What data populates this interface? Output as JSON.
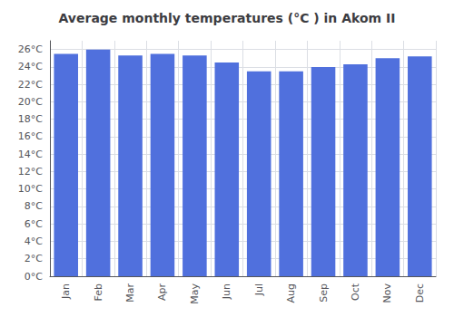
{
  "chart_data": {
    "type": "bar",
    "title": "Average monthly temperatures (°C ) in Akom II",
    "categories": [
      "Jan",
      "Feb",
      "Mar",
      "Apr",
      "May",
      "Jun",
      "Jul",
      "Aug",
      "Sep",
      "Oct",
      "Nov",
      "Dec"
    ],
    "values": [
      25.5,
      26.0,
      25.3,
      25.5,
      25.3,
      24.5,
      23.5,
      23.5,
      24.0,
      24.3,
      25.0,
      25.2
    ],
    "ylim": [
      0,
      27
    ],
    "yticks": [
      {
        "value": 0,
        "label": "0°C"
      },
      {
        "value": 2,
        "label": "2°C"
      },
      {
        "value": 4,
        "label": "4°C"
      },
      {
        "value": 6,
        "label": "6°C"
      },
      {
        "value": 8,
        "label": "8°C"
      },
      {
        "value": 10,
        "label": "10°C"
      },
      {
        "value": 12,
        "label": "12°C"
      },
      {
        "value": 14,
        "label": "14°C"
      },
      {
        "value": 16,
        "label": "16°C"
      },
      {
        "value": 18,
        "label": "18°C"
      },
      {
        "value": 20,
        "label": "20°C"
      },
      {
        "value": 22,
        "label": "22°C"
      },
      {
        "value": 24,
        "label": "24°C"
      },
      {
        "value": 26,
        "label": "26°C"
      }
    ],
    "grid": true
  }
}
